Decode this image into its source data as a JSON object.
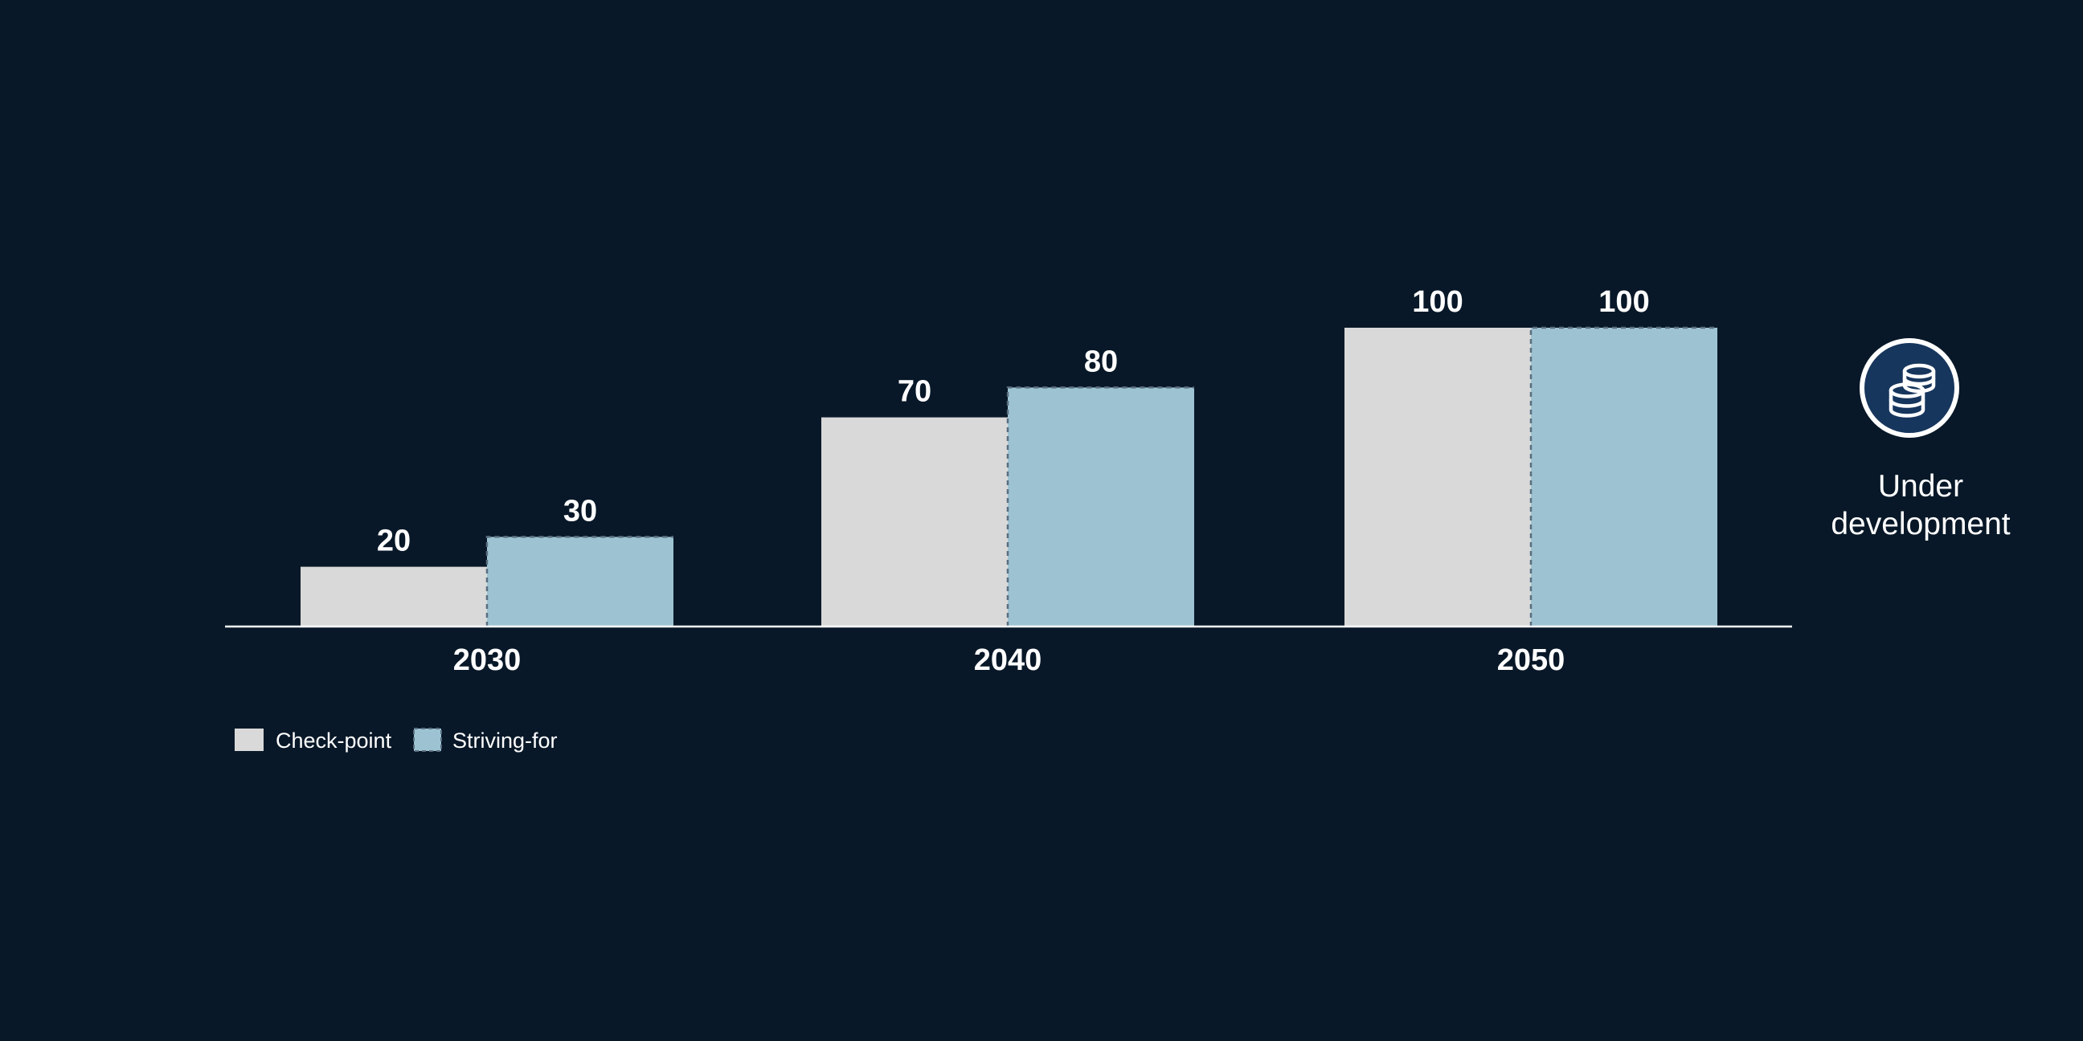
{
  "chart_data": {
    "type": "bar",
    "categories": [
      "2030",
      "2040",
      "2050"
    ],
    "series": [
      {
        "name": "Check-point",
        "values": [
          20,
          70,
          100
        ],
        "color": "#d9d9d9"
      },
      {
        "name": "Striving-for",
        "values": [
          30,
          80,
          100
        ],
        "color": "#9dc3d2"
      }
    ],
    "ylim": [
      0,
      100
    ],
    "grid": false,
    "legend_position": "bottom-left"
  },
  "side_note": {
    "icon": "coins-stack-icon",
    "line1": "Under",
    "line2": "development",
    "icon_fill": "#17365d",
    "icon_ring": "#ffffff"
  },
  "colors": {
    "background": "#081828",
    "text": "#ffffff",
    "axis": "#ffffff",
    "dash": "#5a6e80"
  }
}
